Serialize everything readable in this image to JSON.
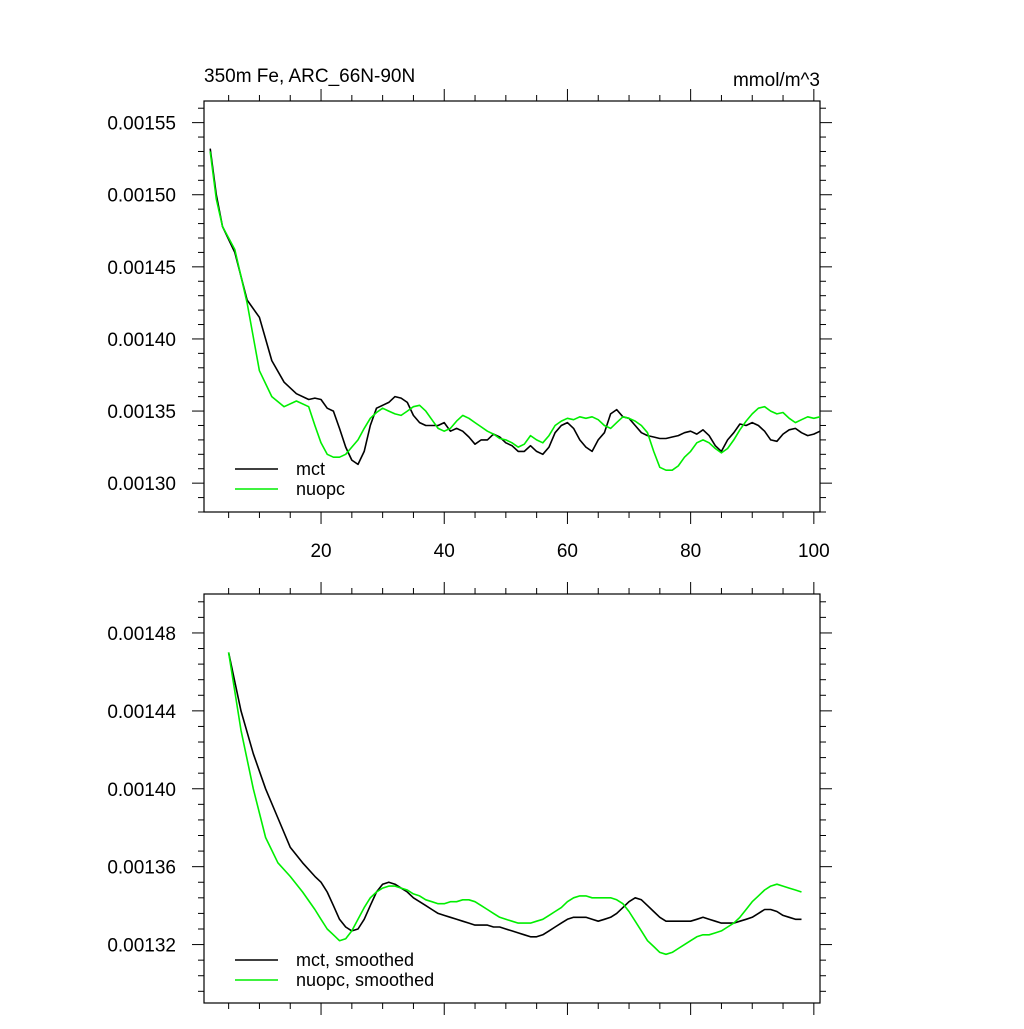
{
  "chart_data": [
    {
      "type": "line",
      "title": "350m Fe, ARC_66N-90N",
      "units": "mmol/m^3",
      "xlim": [
        1,
        101
      ],
      "ylim": [
        0.00128,
        0.001565
      ],
      "x_ticks": [
        20,
        40,
        60,
        80,
        100
      ],
      "x_tick_labels": [
        "20",
        "40",
        "60",
        "80",
        "100"
      ],
      "y_ticks": [
        0.0013,
        0.00135,
        0.0014,
        0.00145,
        0.0015,
        0.00155
      ],
      "y_tick_labels": [
        "0.00130",
        "0.00135",
        "0.00140",
        "0.00145",
        "0.00150",
        "0.00155"
      ],
      "legend_position": "bottom-left",
      "grid": false,
      "series": [
        {
          "name": "mct",
          "color": "#000000",
          "x": [
            2,
            3,
            4,
            6,
            8,
            10,
            12,
            14,
            16,
            18,
            19,
            20,
            21,
            22,
            23,
            24,
            25,
            26,
            27,
            28,
            29,
            30,
            31,
            32,
            33,
            34,
            35,
            36,
            37,
            38,
            39,
            40,
            41,
            42,
            43,
            44,
            45,
            46,
            47,
            48,
            49,
            50,
            51,
            52,
            53,
            54,
            55,
            56,
            57,
            58,
            59,
            60,
            61,
            62,
            63,
            64,
            65,
            66,
            67,
            68,
            69,
            70,
            71,
            72,
            73,
            74,
            75,
            76,
            77,
            78,
            79,
            80,
            81,
            82,
            83,
            84,
            85,
            86,
            87,
            88,
            89,
            90,
            91,
            92,
            93,
            94,
            95,
            96,
            97,
            98,
            99,
            100,
            101
          ],
          "values": [
            0.001532,
            0.0015,
            0.001478,
            0.00146,
            0.001427,
            0.001415,
            0.001385,
            0.00137,
            0.001362,
            0.001358,
            0.001359,
            0.001358,
            0.001352,
            0.00135,
            0.001338,
            0.001325,
            0.001316,
            0.001313,
            0.001322,
            0.00134,
            0.001352,
            0.001354,
            0.001356,
            0.00136,
            0.001359,
            0.001356,
            0.001347,
            0.001342,
            0.00134,
            0.00134,
            0.00134,
            0.001342,
            0.001336,
            0.001338,
            0.001336,
            0.001332,
            0.001327,
            0.00133,
            0.00133,
            0.001334,
            0.001332,
            0.001328,
            0.001326,
            0.001322,
            0.001322,
            0.001326,
            0.001322,
            0.00132,
            0.001325,
            0.001335,
            0.00134,
            0.001342,
            0.001338,
            0.00133,
            0.001325,
            0.001322,
            0.00133,
            0.001335,
            0.001348,
            0.001351,
            0.001346,
            0.001345,
            0.00134,
            0.001335,
            0.001333,
            0.001332,
            0.001331,
            0.001331,
            0.001332,
            0.001333,
            0.001335,
            0.001336,
            0.001334,
            0.001337,
            0.001333,
            0.001326,
            0.001322,
            0.00133,
            0.001335,
            0.001341,
            0.00134,
            0.001342,
            0.00134,
            0.001336,
            0.00133,
            0.001329,
            0.001334,
            0.001337,
            0.001338,
            0.001335,
            0.001333,
            0.001334,
            0.001336
          ]
        },
        {
          "name": "nuopc",
          "color": "#00ee00",
          "x": [
            2,
            3,
            4,
            6,
            8,
            10,
            12,
            14,
            16,
            18,
            19,
            20,
            21,
            22,
            23,
            24,
            25,
            26,
            27,
            28,
            29,
            30,
            31,
            32,
            33,
            34,
            35,
            36,
            37,
            38,
            39,
            40,
            41,
            42,
            43,
            44,
            45,
            46,
            47,
            48,
            49,
            50,
            51,
            52,
            53,
            54,
            55,
            56,
            57,
            58,
            59,
            60,
            61,
            62,
            63,
            64,
            65,
            66,
            67,
            68,
            69,
            70,
            71,
            72,
            73,
            74,
            75,
            76,
            77,
            78,
            79,
            80,
            81,
            82,
            83,
            84,
            85,
            86,
            87,
            88,
            89,
            90,
            91,
            92,
            93,
            94,
            95,
            96,
            97,
            98,
            99,
            100,
            101
          ],
          "values": [
            0.00153,
            0.001497,
            0.001478,
            0.001462,
            0.001425,
            0.001378,
            0.00136,
            0.001353,
            0.001357,
            0.001353,
            0.00134,
            0.001328,
            0.00132,
            0.001318,
            0.001318,
            0.00132,
            0.001325,
            0.00133,
            0.001338,
            0.001345,
            0.001349,
            0.001352,
            0.00135,
            0.001348,
            0.001347,
            0.00135,
            0.001353,
            0.001354,
            0.00135,
            0.001344,
            0.001338,
            0.001336,
            0.001338,
            0.001343,
            0.001347,
            0.001345,
            0.001342,
            0.001339,
            0.001336,
            0.001334,
            0.001331,
            0.00133,
            0.001328,
            0.001325,
            0.001327,
            0.001333,
            0.00133,
            0.001328,
            0.001333,
            0.00134,
            0.001343,
            0.001345,
            0.001344,
            0.001346,
            0.001345,
            0.001346,
            0.001344,
            0.00134,
            0.001338,
            0.001342,
            0.001346,
            0.001345,
            0.001343,
            0.00134,
            0.001335,
            0.001322,
            0.001311,
            0.001309,
            0.001309,
            0.001312,
            0.001318,
            0.001322,
            0.001328,
            0.00133,
            0.001328,
            0.001324,
            0.001321,
            0.001324,
            0.00133,
            0.001337,
            0.001343,
            0.001348,
            0.001352,
            0.001353,
            0.00135,
            0.001348,
            0.001349,
            0.001345,
            0.001342,
            0.001344,
            0.001346,
            0.001345,
            0.001346
          ]
        }
      ]
    },
    {
      "type": "line",
      "xlim": [
        1,
        101
      ],
      "ylim": [
        0.00129,
        0.0015
      ],
      "x_ticks": [
        20,
        40,
        60,
        80,
        100
      ],
      "y_ticks": [
        0.00132,
        0.00136,
        0.0014,
        0.00144,
        0.00148
      ],
      "y_tick_labels": [
        "0.00132",
        "0.00136",
        "0.00140",
        "0.00144",
        "0.00148"
      ],
      "legend_position": "bottom-left",
      "grid": false,
      "series": [
        {
          "name": "mct, smoothed",
          "color": "#000000",
          "x": [
            5,
            7,
            9,
            11,
            13,
            15,
            17,
            19,
            20,
            21,
            22,
            23,
            24,
            25,
            26,
            27,
            28,
            29,
            30,
            31,
            32,
            33,
            34,
            35,
            36,
            37,
            38,
            39,
            40,
            41,
            42,
            43,
            44,
            45,
            46,
            47,
            48,
            49,
            50,
            51,
            52,
            53,
            54,
            55,
            56,
            57,
            58,
            59,
            60,
            61,
            62,
            63,
            64,
            65,
            66,
            67,
            68,
            69,
            70,
            71,
            72,
            73,
            74,
            75,
            76,
            77,
            78,
            79,
            80,
            81,
            82,
            83,
            84,
            85,
            86,
            87,
            88,
            89,
            90,
            91,
            92,
            93,
            94,
            95,
            96,
            97,
            98
          ],
          "values": [
            0.00147,
            0.00144,
            0.001418,
            0.0014,
            0.001385,
            0.00137,
            0.001362,
            0.001355,
            0.001352,
            0.001347,
            0.00134,
            0.001333,
            0.001329,
            0.001327,
            0.001328,
            0.001333,
            0.00134,
            0.001347,
            0.001351,
            0.001352,
            0.001351,
            0.001349,
            0.001347,
            0.001344,
            0.001342,
            0.00134,
            0.001338,
            0.001336,
            0.001335,
            0.001334,
            0.001333,
            0.001332,
            0.001331,
            0.00133,
            0.00133,
            0.00133,
            0.001329,
            0.001329,
            0.001328,
            0.001327,
            0.001326,
            0.001325,
            0.001324,
            0.001324,
            0.001325,
            0.001327,
            0.001329,
            0.001331,
            0.001333,
            0.001334,
            0.001334,
            0.001334,
            0.001333,
            0.001332,
            0.001333,
            0.001334,
            0.001336,
            0.001339,
            0.001342,
            0.001344,
            0.001343,
            0.00134,
            0.001337,
            0.001334,
            0.001332,
            0.001332,
            0.001332,
            0.001332,
            0.001332,
            0.001333,
            0.001334,
            0.001333,
            0.001332,
            0.001331,
            0.001331,
            0.001331,
            0.001332,
            0.001333,
            0.001334,
            0.001336,
            0.001338,
            0.001338,
            0.001337,
            0.001335,
            0.001334,
            0.001333,
            0.001333
          ]
        },
        {
          "name": "nuopc, smoothed",
          "color": "#00ee00",
          "x": [
            5,
            7,
            9,
            11,
            13,
            15,
            17,
            19,
            20,
            21,
            22,
            23,
            24,
            25,
            26,
            27,
            28,
            29,
            30,
            31,
            32,
            33,
            34,
            35,
            36,
            37,
            38,
            39,
            40,
            41,
            42,
            43,
            44,
            45,
            46,
            47,
            48,
            49,
            50,
            51,
            52,
            53,
            54,
            55,
            56,
            57,
            58,
            59,
            60,
            61,
            62,
            63,
            64,
            65,
            66,
            67,
            68,
            69,
            70,
            71,
            72,
            73,
            74,
            75,
            76,
            77,
            78,
            79,
            80,
            81,
            82,
            83,
            84,
            85,
            86,
            87,
            88,
            89,
            90,
            91,
            92,
            93,
            94,
            95,
            96,
            97,
            98
          ],
          "values": [
            0.00147,
            0.00143,
            0.0014,
            0.001375,
            0.001362,
            0.001355,
            0.001347,
            0.001338,
            0.001333,
            0.001328,
            0.001325,
            0.001322,
            0.001323,
            0.001327,
            0.001333,
            0.001339,
            0.001344,
            0.001347,
            0.001349,
            0.00135,
            0.00135,
            0.001349,
            0.001348,
            0.001346,
            0.001345,
            0.001343,
            0.001342,
            0.001341,
            0.001341,
            0.001342,
            0.001342,
            0.001343,
            0.001343,
            0.001342,
            0.00134,
            0.001338,
            0.001336,
            0.001334,
            0.001333,
            0.001332,
            0.001331,
            0.001331,
            0.001331,
            0.001332,
            0.001333,
            0.001335,
            0.001337,
            0.001339,
            0.001342,
            0.001344,
            0.001345,
            0.001345,
            0.001344,
            0.001344,
            0.001344,
            0.001344,
            0.001343,
            0.001341,
            0.001337,
            0.001332,
            0.001327,
            0.001322,
            0.001319,
            0.001316,
            0.001315,
            0.001316,
            0.001318,
            0.00132,
            0.001322,
            0.001324,
            0.001325,
            0.001325,
            0.001326,
            0.001327,
            0.001329,
            0.001331,
            0.001334,
            0.001338,
            0.001342,
            0.001345,
            0.001348,
            0.00135,
            0.001351,
            0.00135,
            0.001349,
            0.001348,
            0.001347
          ]
        }
      ]
    }
  ]
}
